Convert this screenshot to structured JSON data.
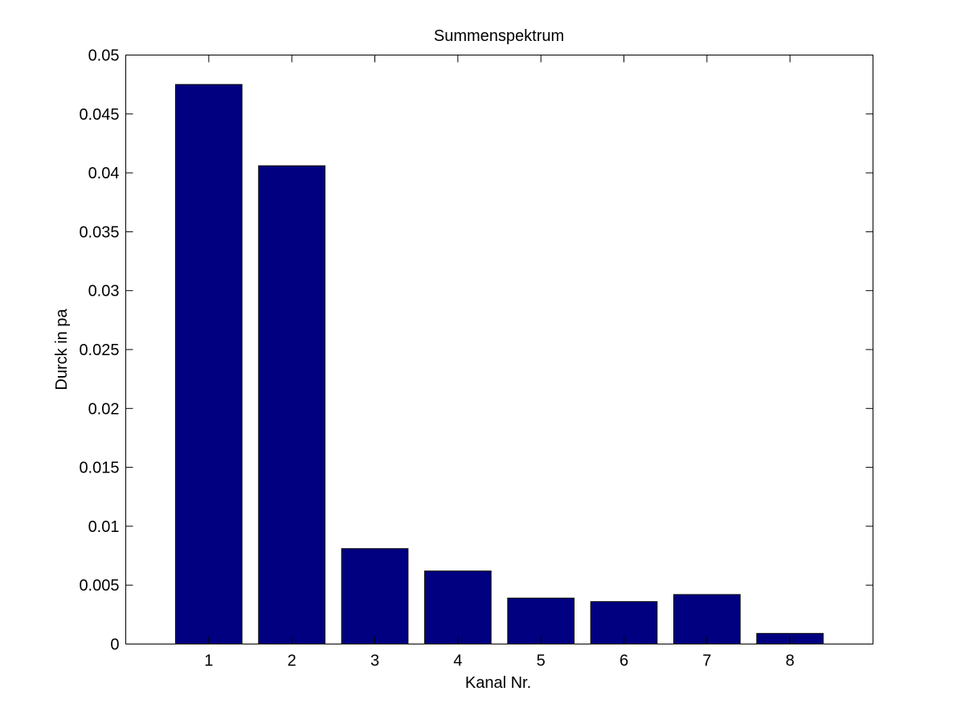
{
  "chart_data": {
    "type": "bar",
    "title": "Summenspektrum",
    "xlabel": "Kanal Nr.",
    "ylabel": "Durck in pa",
    "categories": [
      "1",
      "2",
      "3",
      "4",
      "5",
      "6",
      "7",
      "8"
    ],
    "values": [
      0.0475,
      0.0406,
      0.0081,
      0.0062,
      0.0039,
      0.0036,
      0.0042,
      0.0009
    ],
    "xlim": [
      0,
      9
    ],
    "ylim": [
      0,
      0.05
    ],
    "yticks": [
      "0",
      "0.005",
      "0.01",
      "0.015",
      "0.02",
      "0.025",
      "0.03",
      "0.035",
      "0.04",
      "0.045",
      "0.05"
    ],
    "grid": false,
    "bar_color": "#000080",
    "edge_color": "#000000"
  }
}
